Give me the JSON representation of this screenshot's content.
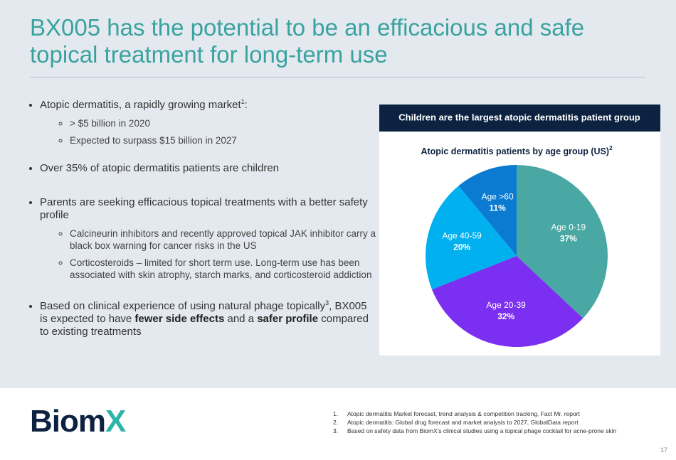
{
  "title": "BX005 has the potential to be an efficacious and safe topical treatment for long-term use",
  "bullets": [
    {
      "text": "Atopic dermatitis, a rapidly growing market",
      "sup": "1",
      "tail": ":",
      "sub": [
        "> $5 billion in 2020",
        "Expected to surpass $15 billion in 2027"
      ]
    },
    {
      "text": "Over 35% of atopic dermatitis patients are children"
    },
    {
      "text": "Parents are seeking efficacious topical treatments with a better safety profile",
      "sub": [
        "Calcineurin inhibitors and recently approved topical JAK inhibitor carry a black box warning for cancer risks in the US",
        "Corticosteroids – limited for short term use. Long-term use has been associated with skin atrophy, starch marks, and corticosteroid addiction"
      ]
    },
    {
      "text": "Based on clinical experience of using natural phage topically",
      "sup": "3",
      "parts": [
        ", BX005 is expected to have ",
        "fewer side effects",
        " and a ",
        "safer profile",
        " compared to existing treatments"
      ]
    }
  ],
  "chart_data": {
    "type": "pie",
    "header": "Children are the largest atopic dermatitis patient group",
    "title": "Atopic dermatitis patients by age group (US)",
    "title_sup": "2",
    "categories": [
      "Age 0-19",
      "Age 20-39",
      "Age 40-59",
      "Age >60"
    ],
    "values": [
      37,
      32,
      20,
      11
    ],
    "value_labels": [
      "37%",
      "32%",
      "20%",
      "11%"
    ],
    "colors": [
      "#4aa8a4",
      "#7b2ff0",
      "#00b0ef",
      "#0a7bd1"
    ]
  },
  "logo": [
    "Biom",
    "X"
  ],
  "footnotes": [
    {
      "num": "1.",
      "text": "Atopic dermatitis Market forecast, trend analysis & competition tracking, Fact Mr. report"
    },
    {
      "num": "2.",
      "text": "Atopic dermatitis: Global drug forecast and market analysis to 2027, GlobalData report"
    },
    {
      "num": "3.",
      "text": "Based on safety data from BiomX's clinical studies using a topical phage cocktail for acne-prone skin"
    }
  ],
  "page_number": "17"
}
